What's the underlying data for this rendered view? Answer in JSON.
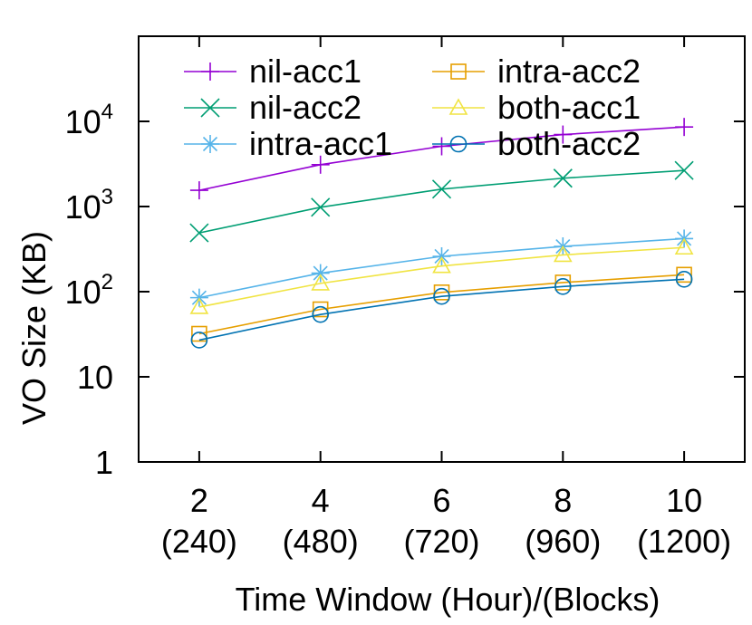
{
  "chart_data": {
    "type": "line",
    "title": "",
    "ylabel": "VO Size (KB)",
    "xlabel": "Time Window (Hour)/(Blocks)",
    "yscale": "log",
    "ylim": [
      1,
      100000
    ],
    "xlim": [
      1,
      11
    ],
    "grid": false,
    "legend_position": "top, two columns",
    "y_ticks": [
      {
        "value": 1,
        "label": "1"
      },
      {
        "value": 10,
        "label": "10"
      },
      {
        "value": 100,
        "label": "10",
        "sup": "2"
      },
      {
        "value": 1000,
        "label": "10",
        "sup": "3"
      },
      {
        "value": 10000,
        "label": "10",
        "sup": "4"
      }
    ],
    "x_ticks": [
      {
        "value": 2,
        "line1": "2",
        "line2": "(240)"
      },
      {
        "value": 4,
        "line1": "4",
        "line2": "(480)"
      },
      {
        "value": 6,
        "line1": "6",
        "line2": "(720)"
      },
      {
        "value": 8,
        "line1": "8",
        "line2": "(960)"
      },
      {
        "value": 10,
        "line1": "10",
        "line2": "(1200)"
      }
    ],
    "x": [
      2,
      4,
      6,
      8,
      10
    ],
    "series": [
      {
        "name": "nil-acc1",
        "color": "#9400d3",
        "marker": "plus",
        "values": [
          1550,
          3100,
          5100,
          7000,
          8600
        ]
      },
      {
        "name": "nil-acc2",
        "color": "#009e73",
        "marker": "cross",
        "values": [
          490,
          980,
          1600,
          2150,
          2650
        ]
      },
      {
        "name": "intra-acc1",
        "color": "#56b4e9",
        "marker": "asterisk",
        "values": [
          85,
          165,
          260,
          340,
          420
        ]
      },
      {
        "name": "intra-acc2",
        "color": "#e69f00",
        "marker": "square",
        "values": [
          32,
          62,
          98,
          128,
          158
        ]
      },
      {
        "name": "both-acc1",
        "color": "#f0e442",
        "marker": "triangle",
        "values": [
          66,
          125,
          200,
          270,
          330
        ]
      },
      {
        "name": "both-acc2",
        "color": "#0072b2",
        "marker": "circle",
        "values": [
          27,
          54,
          88,
          115,
          140
        ]
      }
    ]
  }
}
